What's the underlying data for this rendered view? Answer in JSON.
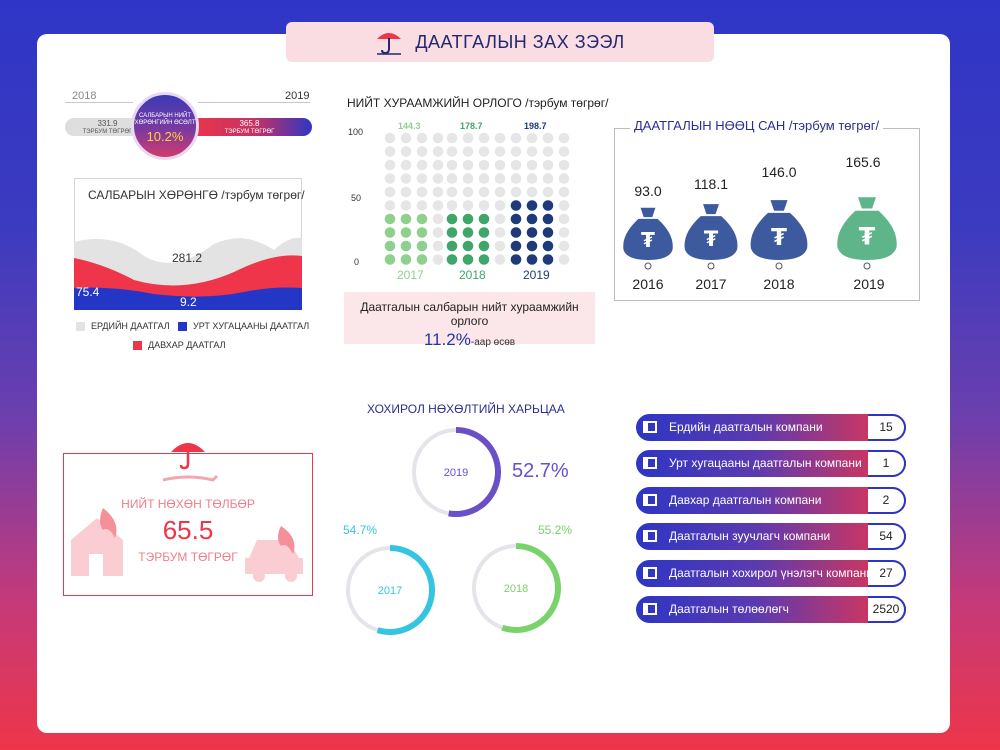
{
  "header": {
    "title": "ДААТГАЛЫН ЗАХ ЗЭЭЛ"
  },
  "assets_growth": {
    "year_start": "2018",
    "year_end": "2019",
    "left_value": "331.9",
    "left_unit": "ТЭРБУМ ТӨГРӨГ",
    "right_value": "365.8",
    "right_unit": "ТЭРБУМ ТӨГРӨГ",
    "circle_label": "САЛБАРЫН НИЙТ ХӨРӨНГИЙН ӨСӨЛТ",
    "circle_value": "10.2%"
  },
  "colors": {
    "navy": "#2436a6",
    "red": "#ee3549",
    "grey": "#e0e0e0",
    "light_green": "#8fd08f",
    "green": "#3fa56b",
    "dark_blue": "#1e3a78",
    "bag_blue": "#3d5a9e",
    "bag_green": "#5fb58a"
  },
  "chart_data": [
    {
      "type": "area",
      "title": "САЛБАРЫН ХӨРӨНГӨ /тэрбум төгрөг/",
      "series": [
        {
          "name": "ЕРДИЙН ДААТГАЛ",
          "value_label": "281.2"
        },
        {
          "name": "УРТ ХУГАЦААНЫ ДААТГАЛ",
          "value_label": "9.2"
        },
        {
          "name": "ДАВХАР ДААТГАЛ",
          "value_label": "75.4"
        }
      ]
    },
    {
      "type": "bar",
      "title": "НИЙТ ХУРААМЖИЙН ОРЛОГО /тэрбум төгрөг/",
      "categories": [
        "2017",
        "2018",
        "2019"
      ],
      "values": [
        144.3,
        178.7,
        198.7
      ],
      "ylim": [
        0,
        100
      ],
      "yticks": [
        "100",
        "50",
        "0"
      ],
      "note": "Даатгалын салбарын нийт хураамжийн орлого",
      "growth": "11.2%",
      "growth_suffix": "-аар өсөв"
    },
    {
      "type": "bar",
      "title": "ДААТГАЛЫН НӨӨЦ САН /тэрбум төгрөг/",
      "categories": [
        "2016",
        "2017",
        "2018",
        "2019"
      ],
      "values": [
        93.0,
        118.1,
        146.0,
        165.6
      ],
      "labels": [
        "93.0",
        "118.1",
        "146.0",
        "165.6"
      ]
    },
    {
      "type": "pie",
      "title": "ХОХИРОЛ НӨХӨЛТИЙН ХАРЬЦАА",
      "categories": [
        "2019",
        "2017",
        "2018"
      ],
      "values": [
        52.7,
        54.7,
        55.2
      ],
      "labels": [
        "52.7%",
        "54.7%",
        "55.2%"
      ]
    }
  ],
  "claims": {
    "title": "НИЙТ НӨХӨН ТӨЛБӨР",
    "value": "65.5",
    "unit": "ТЭРБУМ ТӨГРӨГ"
  },
  "companies": [
    {
      "name": "Ердийн даатгалын компани",
      "count": "15"
    },
    {
      "name": "Урт хугацааны даатгалын компани",
      "count": "1"
    },
    {
      "name": "Давхар даатгалын компани",
      "count": "2"
    },
    {
      "name": "Даатгалын зуучлагч компани",
      "count": "54"
    },
    {
      "name": "Даатгалын хохирол үнэлэгч компани",
      "count": "27"
    },
    {
      "name": "Даатгалын төлөөлөгч",
      "count": "2520"
    }
  ]
}
